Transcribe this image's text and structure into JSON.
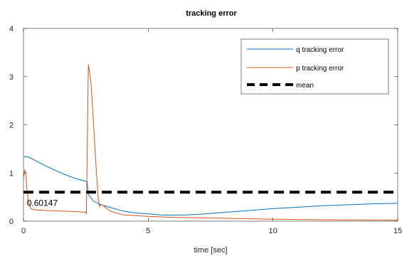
{
  "chart_data": {
    "type": "line",
    "title": "tracking error",
    "xlabel": "time [sec]",
    "ylabel": "",
    "xlim": [
      0,
      15
    ],
    "ylim": [
      0,
      4
    ],
    "xticks": [
      0,
      5,
      10,
      15
    ],
    "yticks": [
      0,
      1,
      2,
      3,
      4
    ],
    "grid": false,
    "legend_position": "top-right",
    "series": [
      {
        "name": "q tracking error",
        "color": "#0072BD",
        "style": "solid",
        "x": [
          0,
          0.1,
          0.2,
          0.4,
          0.8,
          1.2,
          1.6,
          2.0,
          2.4,
          2.55,
          2.6,
          2.8,
          3.0,
          3.5,
          4.0,
          4.5,
          5.0,
          5.5,
          6.0,
          6.5,
          7.0,
          8.0,
          9.0,
          10.0,
          11.0,
          12.0,
          13.0,
          14.0,
          15.0
        ],
        "y": [
          1.33,
          1.34,
          1.33,
          1.28,
          1.17,
          1.07,
          0.98,
          0.9,
          0.84,
          0.82,
          0.55,
          0.42,
          0.36,
          0.28,
          0.21,
          0.17,
          0.15,
          0.13,
          0.125,
          0.13,
          0.14,
          0.18,
          0.22,
          0.26,
          0.29,
          0.32,
          0.34,
          0.36,
          0.37
        ]
      },
      {
        "name": "p tracking error",
        "color": "#D95319",
        "style": "solid",
        "x": [
          0,
          0.05,
          0.1,
          0.15,
          0.2,
          0.3,
          0.4,
          0.6,
          1.0,
          1.5,
          2.0,
          2.4,
          2.5,
          2.52,
          2.6,
          2.7,
          2.8,
          2.9,
          3.0,
          3.05,
          3.1,
          3.2,
          3.3,
          3.5,
          4.0,
          5.0,
          6.0,
          8.0,
          10.0,
          12.0,
          15.0
        ],
        "y": [
          0.9,
          1.07,
          0.95,
          0.6,
          0.4,
          0.26,
          0.24,
          0.23,
          0.22,
          0.21,
          0.2,
          0.19,
          0.18,
          0.15,
          3.25,
          2.9,
          2.1,
          1.2,
          0.45,
          0.3,
          0.35,
          0.33,
          0.28,
          0.2,
          0.13,
          0.1,
          0.08,
          0.06,
          0.04,
          0.03,
          0.02
        ]
      },
      {
        "name": "mean",
        "color": "#000000",
        "style": "dashed",
        "x": [
          0,
          15
        ],
        "y": [
          0.60147,
          0.60147
        ]
      }
    ],
    "annotations": [
      {
        "text": "0.60147",
        "x": 0.05,
        "y": 0.60147
      }
    ]
  }
}
